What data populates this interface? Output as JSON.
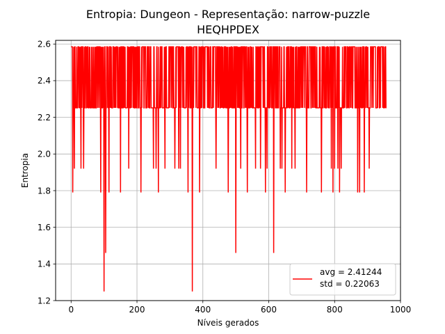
{
  "chart_data": {
    "type": "line",
    "title": "Entropia: Dungeon - Representação: narrow-puzzle",
    "subtitle": "HEQHPDEX",
    "xlabel": "Níveis gerados",
    "ylabel": "Entropia",
    "xlim": [
      -47,
      1000
    ],
    "ylim": [
      1.2,
      2.62
    ],
    "xticks": [
      0,
      200,
      400,
      600,
      800,
      1000
    ],
    "xtick_labels": [
      "0",
      "200",
      "400",
      "600",
      "800",
      "1000"
    ],
    "yticks": [
      1.2,
      1.4,
      1.6,
      1.8,
      2.0,
      2.2,
      2.4,
      2.6
    ],
    "ytick_labels": [
      "1.2",
      "1.4",
      "1.6",
      "1.8",
      "2.0",
      "2.2",
      "2.4",
      "2.6"
    ],
    "grid": true,
    "legend_position": "lower-right",
    "series": [
      {
        "name": "avg = 2.41244\nstd = 0.22063",
        "legend_lines": [
          "avg = 2.41244",
          "std = 0.22063"
        ],
        "color": "#ff0000",
        "x_range": [
          0,
          957
        ],
        "levels": [
          2.58496,
          2.25163
        ],
        "dips": [
          {
            "x": 5,
            "y": 1.79
          },
          {
            "x": 10,
            "y": 1.92
          },
          {
            "x": 30,
            "y": 1.92
          },
          {
            "x": 38,
            "y": 1.92
          },
          {
            "x": 90,
            "y": 1.79
          },
          {
            "x": 100,
            "y": 1.25
          },
          {
            "x": 105,
            "y": 1.46
          },
          {
            "x": 115,
            "y": 1.79
          },
          {
            "x": 150,
            "y": 1.79
          },
          {
            "x": 175,
            "y": 1.92
          },
          {
            "x": 212,
            "y": 1.79
          },
          {
            "x": 250,
            "y": 1.92
          },
          {
            "x": 258,
            "y": 1.92
          },
          {
            "x": 265,
            "y": 1.79
          },
          {
            "x": 285,
            "y": 1.92
          },
          {
            "x": 315,
            "y": 1.92
          },
          {
            "x": 327,
            "y": 1.92
          },
          {
            "x": 332,
            "y": 1.92
          },
          {
            "x": 355,
            "y": 1.79
          },
          {
            "x": 368,
            "y": 1.25
          },
          {
            "x": 390,
            "y": 1.79
          },
          {
            "x": 440,
            "y": 1.92
          },
          {
            "x": 477,
            "y": 1.79
          },
          {
            "x": 500,
            "y": 1.46
          },
          {
            "x": 515,
            "y": 1.92
          },
          {
            "x": 535,
            "y": 1.79
          },
          {
            "x": 560,
            "y": 1.92
          },
          {
            "x": 575,
            "y": 1.92
          },
          {
            "x": 590,
            "y": 1.79
          },
          {
            "x": 595,
            "y": 1.92
          },
          {
            "x": 615,
            "y": 1.46
          },
          {
            "x": 635,
            "y": 1.92
          },
          {
            "x": 640,
            "y": 1.92
          },
          {
            "x": 650,
            "y": 1.79
          },
          {
            "x": 670,
            "y": 1.92
          },
          {
            "x": 680,
            "y": 1.92
          },
          {
            "x": 715,
            "y": 1.79
          },
          {
            "x": 760,
            "y": 1.79
          },
          {
            "x": 790,
            "y": 1.92
          },
          {
            "x": 795,
            "y": 1.79
          },
          {
            "x": 800,
            "y": 1.92
          },
          {
            "x": 810,
            "y": 1.92
          },
          {
            "x": 815,
            "y": 1.79
          },
          {
            "x": 820,
            "y": 1.92
          },
          {
            "x": 870,
            "y": 1.79
          },
          {
            "x": 876,
            "y": 1.79
          },
          {
            "x": 890,
            "y": 1.79
          },
          {
            "x": 905,
            "y": 1.92
          }
        ]
      }
    ]
  }
}
